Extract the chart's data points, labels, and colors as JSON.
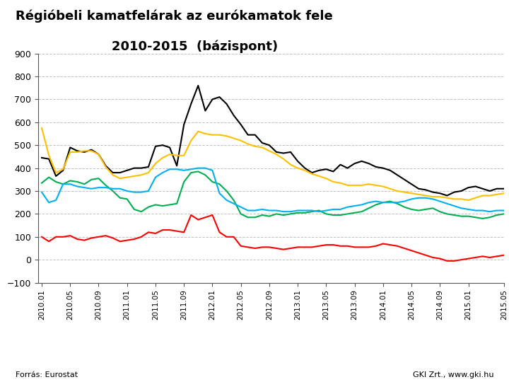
{
  "title_line1": "Régióbeli kamatfelárak az eurókamatok fele",
  "title_line2": "2010-2015  (bázispont)",
  "source_left": "Forrás: Eurostat",
  "source_right": "GKI Zrt., www.gki.hu",
  "ylim": [
    -100,
    900
  ],
  "yticks": [
    -100,
    0,
    100,
    200,
    300,
    400,
    500,
    600,
    700,
    800,
    900
  ],
  "background_color": "#ffffff",
  "plot_bg_color": "#ffffff",
  "grid_color": "#bbbbbb",
  "series": {
    "Bulgária": {
      "color": "#00b050",
      "data": [
        335,
        360,
        340,
        330,
        345,
        340,
        330,
        350,
        355,
        325,
        300,
        270,
        265,
        220,
        210,
        230,
        240,
        235,
        240,
        245,
        340,
        380,
        385,
        370,
        340,
        330,
        300,
        260,
        200,
        185,
        185,
        195,
        190,
        200,
        195,
        200,
        205,
        205,
        210,
        215,
        200,
        195,
        195,
        200,
        205,
        210,
        225,
        240,
        250,
        255,
        245,
        230,
        220,
        215,
        220,
        225,
        210,
        200,
        195,
        190,
        190,
        185,
        180,
        185,
        195,
        200
      ]
    },
    "Csehország": {
      "color": "#ff0000",
      "data": [
        100,
        80,
        100,
        100,
        105,
        90,
        85,
        95,
        100,
        105,
        95,
        80,
        85,
        90,
        100,
        120,
        115,
        130,
        130,
        125,
        120,
        195,
        175,
        185,
        195,
        120,
        100,
        100,
        60,
        55,
        50,
        55,
        55,
        50,
        45,
        50,
        55,
        55,
        55,
        60,
        65,
        65,
        60,
        60,
        55,
        55,
        55,
        60,
        70,
        65,
        60,
        50,
        40,
        30,
        20,
        10,
        5,
        -5,
        -5,
        0,
        5,
        10,
        15,
        10,
        15,
        20
      ]
    },
    "Magyarország": {
      "color": "#000000",
      "data": [
        445,
        440,
        365,
        390,
        490,
        475,
        470,
        480,
        460,
        410,
        380,
        380,
        390,
        400,
        400,
        405,
        495,
        500,
        490,
        410,
        590,
        680,
        760,
        650,
        700,
        710,
        680,
        630,
        590,
        545,
        545,
        510,
        500,
        470,
        465,
        470,
        430,
        400,
        380,
        390,
        395,
        385,
        415,
        400,
        420,
        430,
        420,
        405,
        400,
        390,
        370,
        350,
        330,
        310,
        305,
        295,
        290,
        280,
        295,
        300,
        315,
        320,
        310,
        300,
        310,
        310
      ]
    },
    "Lengyelország": {
      "color": "#00b0f0",
      "data": [
        295,
        250,
        260,
        330,
        330,
        320,
        315,
        310,
        315,
        315,
        310,
        310,
        300,
        295,
        295,
        300,
        360,
        380,
        395,
        395,
        390,
        395,
        400,
        400,
        390,
        290,
        260,
        245,
        230,
        215,
        215,
        220,
        215,
        215,
        210,
        210,
        215,
        215,
        215,
        210,
        215,
        220,
        220,
        230,
        235,
        240,
        250,
        255,
        250,
        250,
        250,
        255,
        265,
        270,
        270,
        265,
        255,
        245,
        235,
        225,
        220,
        215,
        215,
        210,
        215,
        215
      ]
    },
    "Románia": {
      "color": "#ffc000",
      "data": [
        575,
        455,
        380,
        395,
        470,
        470,
        475,
        475,
        460,
        405,
        370,
        355,
        360,
        365,
        370,
        380,
        420,
        445,
        460,
        455,
        455,
        520,
        560,
        550,
        545,
        545,
        540,
        530,
        520,
        505,
        495,
        490,
        475,
        460,
        440,
        415,
        400,
        390,
        375,
        365,
        355,
        340,
        335,
        325,
        325,
        325,
        330,
        325,
        320,
        310,
        300,
        295,
        290,
        285,
        280,
        275,
        275,
        270,
        265,
        265,
        260,
        270,
        280,
        280,
        285,
        290
      ]
    }
  },
  "x_tick_labels": [
    "2010.01",
    "2010.05",
    "2010.09",
    "2011.01",
    "2011.05",
    "2011.09",
    "2012.01",
    "2012.05",
    "2012.09",
    "2013.01",
    "2013.05",
    "2013.09",
    "2014.01",
    "2014.05",
    "2014.09",
    "2015.01",
    "2015.05"
  ],
  "x_tick_positions": [
    0,
    4,
    8,
    12,
    16,
    20,
    24,
    28,
    32,
    36,
    40,
    44,
    48,
    52,
    56,
    60,
    65
  ]
}
